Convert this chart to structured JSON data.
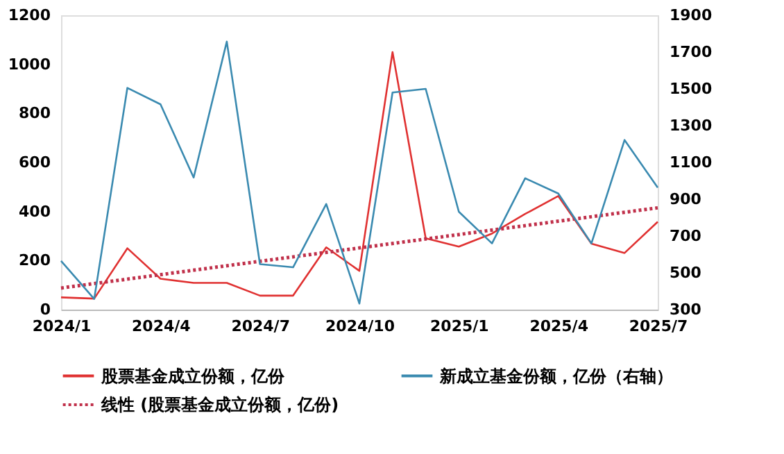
{
  "chart_data": {
    "type": "line",
    "categories": [
      "2024/1",
      null,
      null,
      "2024/4",
      null,
      null,
      "2024/7",
      null,
      null,
      "2024/10",
      null,
      null,
      "2025/1",
      null,
      null,
      "2025/4",
      null,
      null,
      "2025/7"
    ],
    "series": [
      {
        "name": "股票基金成立份额，亿份",
        "color": "#e03131",
        "values": [
          50,
          45,
          250,
          126,
          109,
          109,
          57,
          57,
          254,
          158,
          1050,
          291,
          257,
          310,
          390,
          463,
          269,
          231,
          358
        ]
      },
      {
        "name": "新成立基金份额，亿份（右轴）",
        "color": "#3a8ab0",
        "axis": "y2",
        "values": [
          565,
          358,
          1505,
          1416,
          1018,
          1757,
          547,
          530,
          874,
          333,
          1480,
          1500,
          832,
          660,
          1014,
          931,
          660,
          1222,
          963
        ]
      },
      {
        "name": "线性 (股票基金成立份额，亿份)",
        "color": "#c0304a",
        "line_style": "dotted",
        "x": [
          "2024/1",
          "2025/7"
        ],
        "values": [
          88,
          415
        ]
      }
    ],
    "ylim": [
      0,
      1200
    ],
    "yticks": [
      0,
      200,
      400,
      600,
      800,
      1000,
      1200
    ],
    "y2lim": [
      300,
      1900
    ],
    "y2ticks": [
      300,
      500,
      700,
      900,
      1100,
      1300,
      1500,
      1700,
      1900
    ],
    "grid": false,
    "legend": "bottom",
    "marker": "none"
  }
}
